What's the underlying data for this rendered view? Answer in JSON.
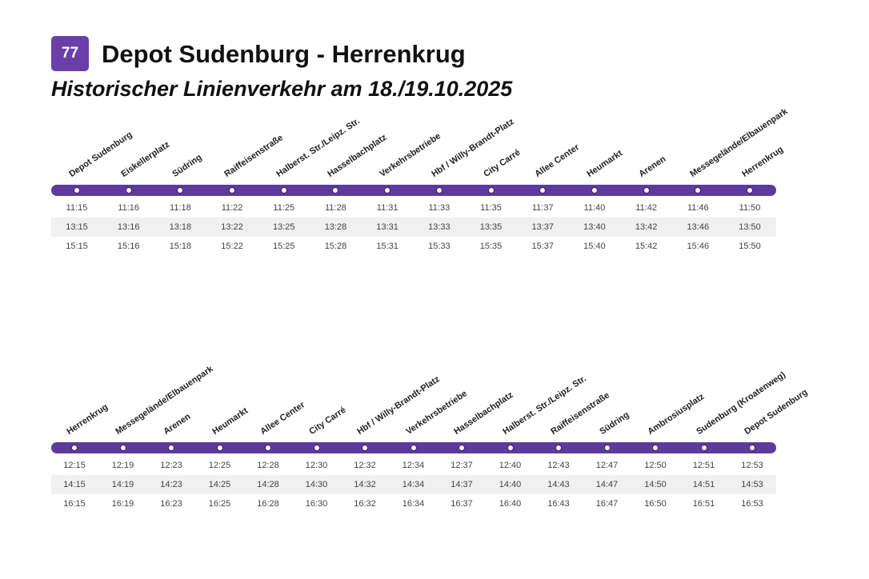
{
  "line_number": "77",
  "title": "Depot Sudenburg - Herrenkrug",
  "subtitle": "Historischer Linienverkehr am 18./19.10.2025",
  "colors": {
    "line_purple": "#5d3a9b",
    "badge_purple": "#6a3fa8",
    "row_shade": "#f0f0f0"
  },
  "directions": [
    {
      "stops": [
        "Depot Sudenburg",
        "Eiskellerplatz",
        "Südring",
        "Raiffeisenstraße",
        "Halberst. Str./Leipz. Str.",
        "Hasselbachplatz",
        "Verkehrsbetriebe",
        "Hbf / Willy-Brandt-Platz",
        "City Carré",
        "Allee Center",
        "Heumarkt",
        "Arenen",
        "Messegelände/Elbauenpark",
        "Herrenkrug"
      ],
      "times": [
        [
          "11:15",
          "11:16",
          "11:18",
          "11:22",
          "11:25",
          "11:28",
          "11:31",
          "11:33",
          "11:35",
          "11:37",
          "11:40",
          "11:42",
          "11:46",
          "11:50"
        ],
        [
          "13:15",
          "13:16",
          "13:18",
          "13:22",
          "13:25",
          "13:28",
          "13:31",
          "13:33",
          "13:35",
          "13:37",
          "13:40",
          "13:42",
          "13:46",
          "13:50"
        ],
        [
          "15:15",
          "15:16",
          "15:18",
          "15:22",
          "15:25",
          "15:28",
          "15:31",
          "15:33",
          "15:35",
          "15:37",
          "15:40",
          "15:42",
          "15:46",
          "15:50"
        ]
      ]
    },
    {
      "stops": [
        "Herrenkrug",
        "Messegelände/Elbauenpark",
        "Arenen",
        "Heumarkt",
        "Allee Center",
        "City Carré",
        "Hbf / Willy-Brandt-Platz",
        "Verkehrsbetriebe",
        "Hasselbachplatz",
        "Halberst. Str./Leipz. Str.",
        "Raiffeisenstraße",
        "Südring",
        "Ambrosiusplatz",
        "Sudenburg (Kroatenweg)",
        "Depot Sudenburg"
      ],
      "times": [
        [
          "12:15",
          "12:19",
          "12:23",
          "12:25",
          "12:28",
          "12:30",
          "12:32",
          "12:34",
          "12:37",
          "12:40",
          "12:43",
          "12:47",
          "12:50",
          "12:51",
          "12:53"
        ],
        [
          "14:15",
          "14:19",
          "14:23",
          "14:25",
          "14:28",
          "14:30",
          "14:32",
          "14:34",
          "14:37",
          "14:40",
          "14:43",
          "14:47",
          "14:50",
          "14:51",
          "14:53"
        ],
        [
          "16:15",
          "16:19",
          "16:23",
          "16:25",
          "16:28",
          "16:30",
          "16:32",
          "16:34",
          "16:37",
          "16:40",
          "16:43",
          "16:47",
          "16:50",
          "16:51",
          "16:53"
        ]
      ]
    }
  ]
}
